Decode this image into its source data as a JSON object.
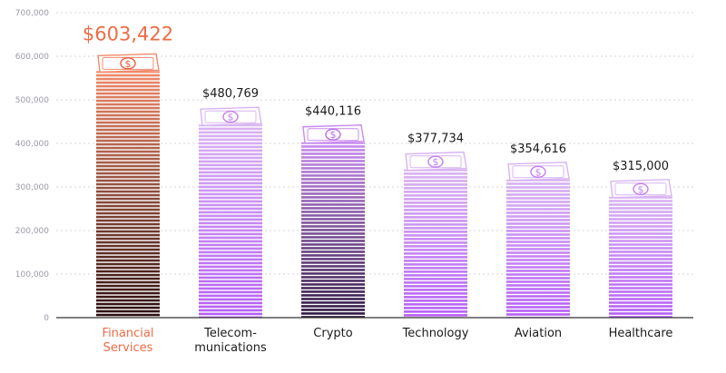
{
  "chart_data": {
    "type": "bar",
    "title": "",
    "xlabel": "",
    "ylabel": "",
    "ylim": [
      0,
      700000
    ],
    "y_ticks": [
      "0",
      "100,000",
      "200,000",
      "300,000",
      "400,000",
      "500,000",
      "600,000",
      "700,000"
    ],
    "categories": [
      [
        "Financial",
        "Services"
      ],
      [
        "Telecom-",
        "munications"
      ],
      [
        "Crypto"
      ],
      [
        "Technology"
      ],
      [
        "Aviation"
      ],
      [
        "Healthcare"
      ]
    ],
    "values": [
      603422,
      480769,
      440116,
      377734,
      354616,
      315000
    ],
    "value_labels": [
      "$603,422",
      "$480,769",
      "$440,116",
      "$377,734",
      "$354,616",
      "$315,000"
    ],
    "highlight_index": 0,
    "grid": true,
    "colors": {
      "highlight_label": "#ee6b45",
      "highlight_top": "#f08a6a",
      "highlight_bottom": "#2a0d0d",
      "default_top": "#d9b4f2",
      "default_bottom": "#b55df5",
      "dark_top": "#c98cf0",
      "dark_bottom": "#2d1640",
      "dark_index": 2,
      "grid": "#d6d6de",
      "axis": "#333333"
    },
    "icon": "money-stack-icon"
  }
}
